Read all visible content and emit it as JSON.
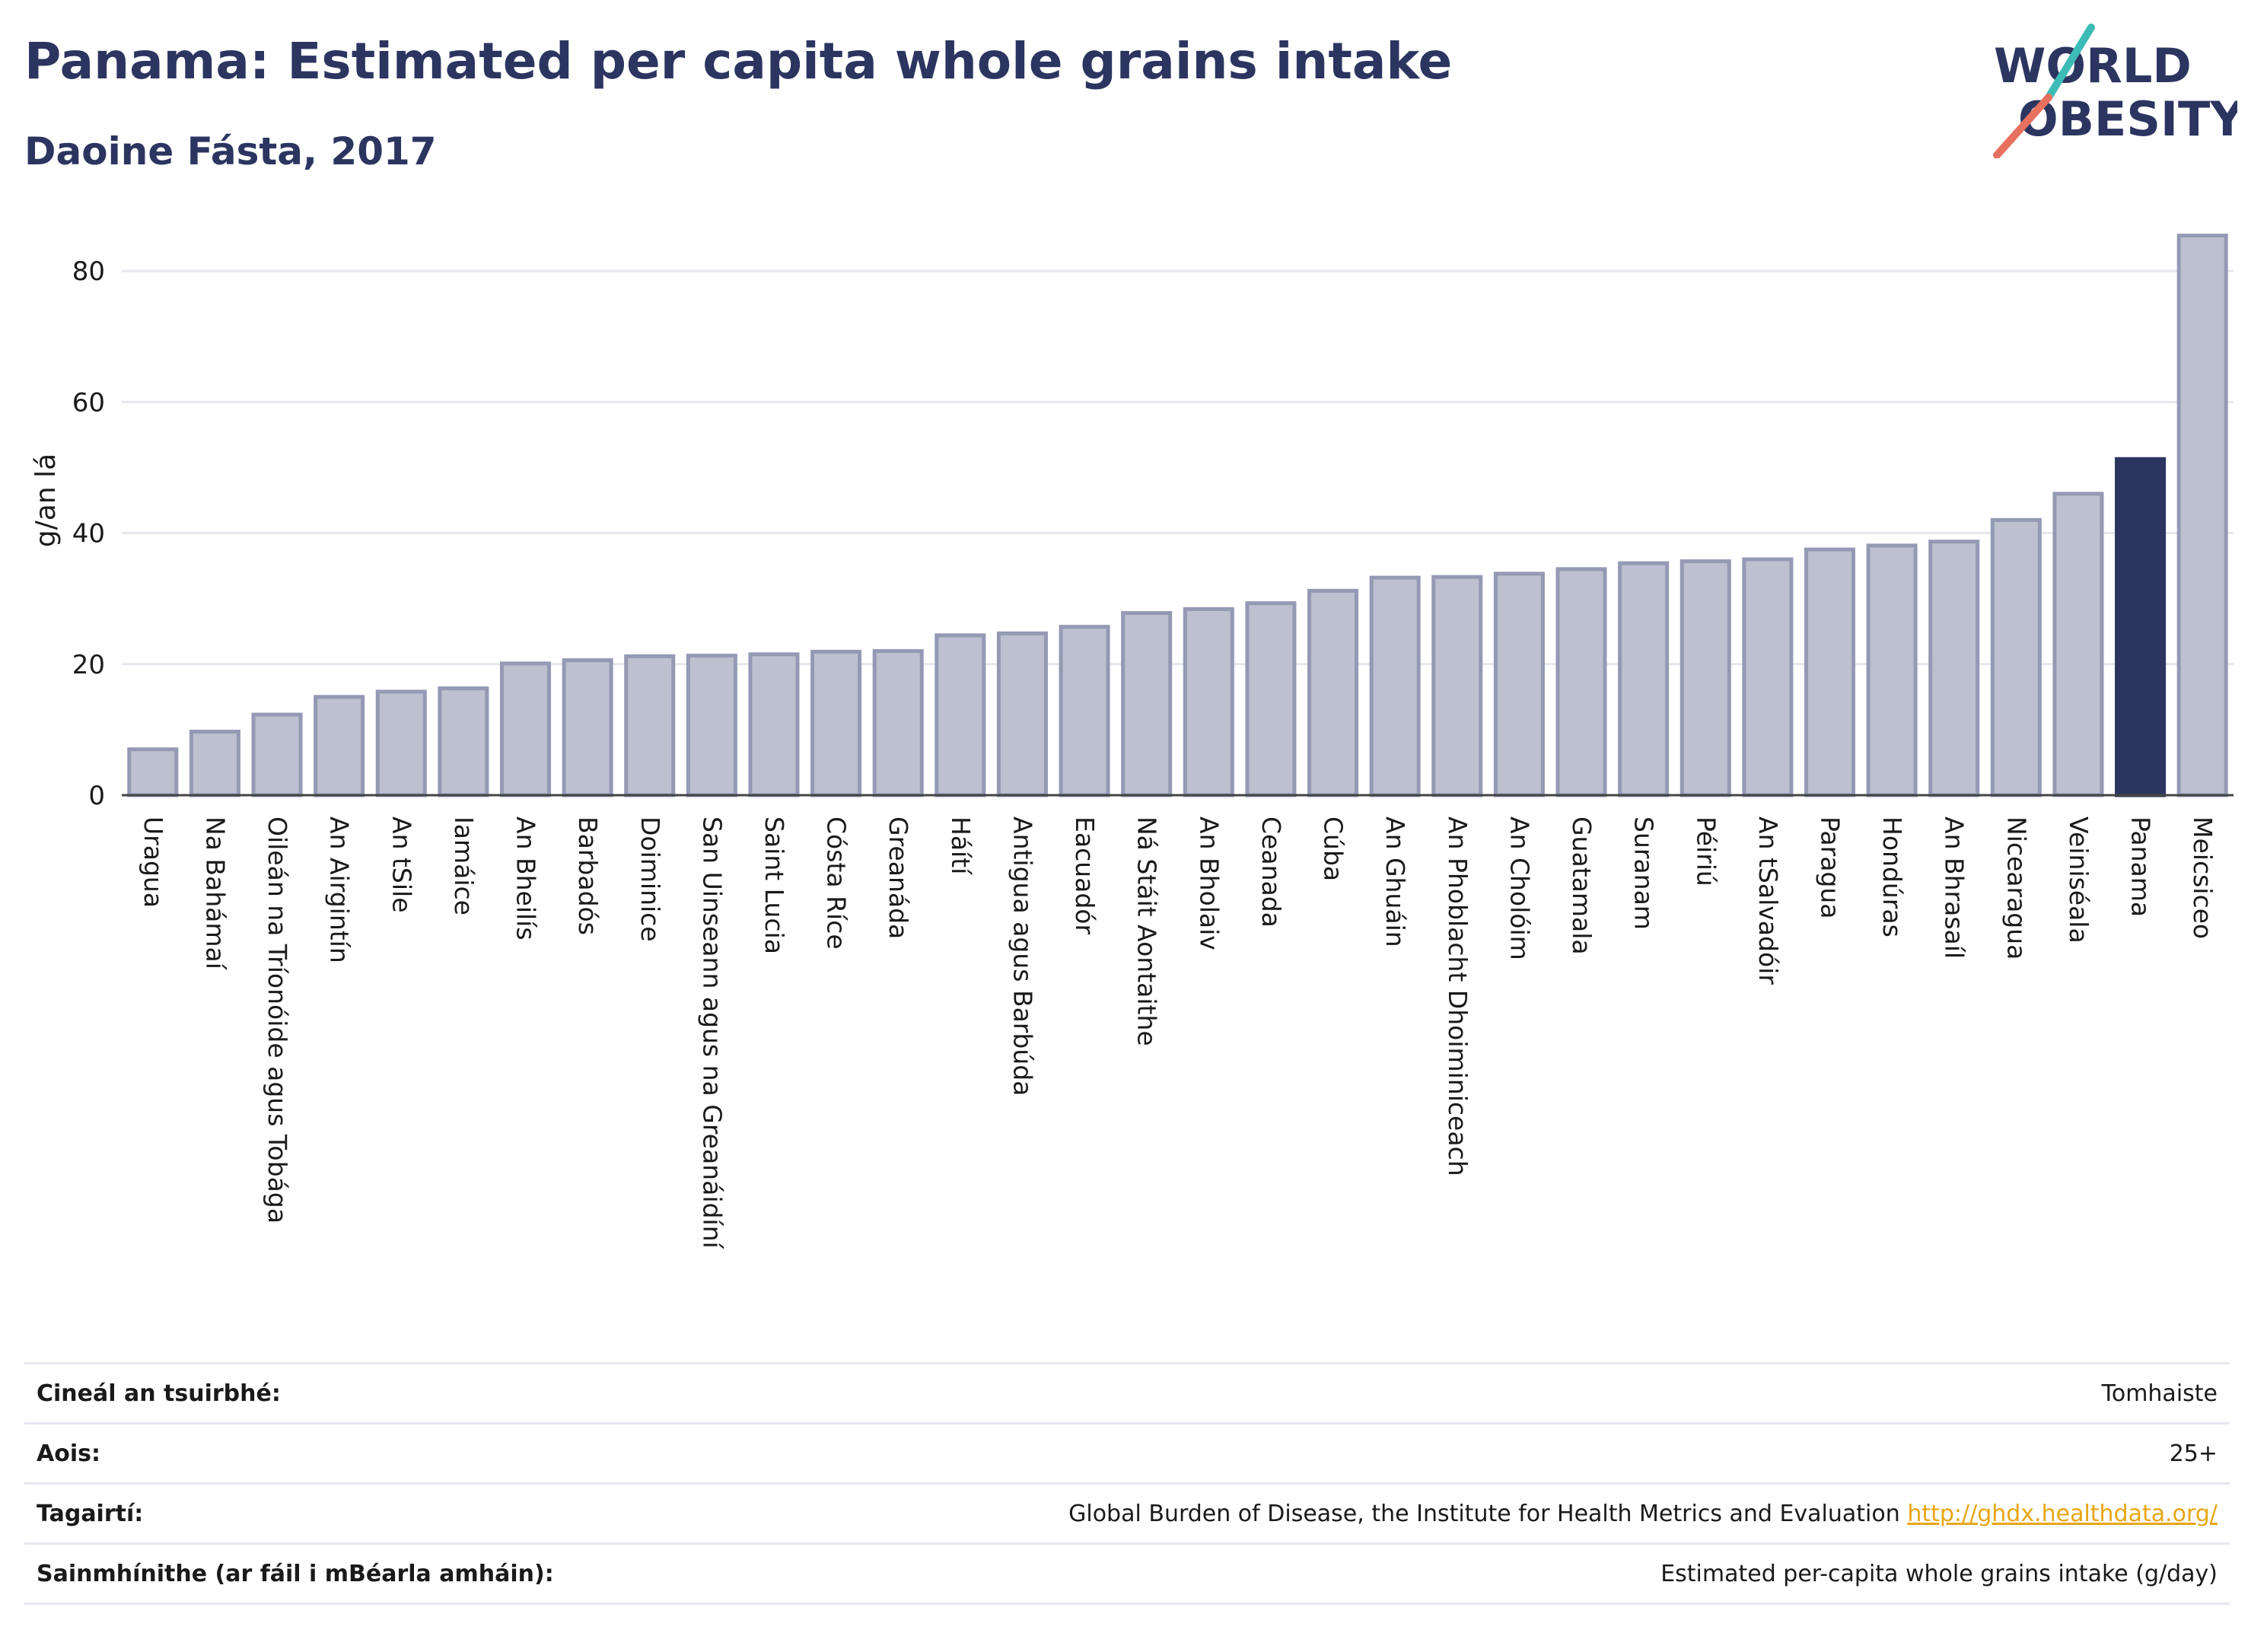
{
  "title": "Panama: Estimated per capita whole grains intake",
  "subtitle": "Daoine Fásta, 2017",
  "logo": {
    "line1": "WORLD",
    "line2": "OBESITY",
    "accent_teal": "#3dbbb6",
    "accent_red": "#e8705f",
    "text_color": "#2c3560"
  },
  "colors": {
    "bar": "#bcc0cf",
    "bar_stroke": "#9499b4",
    "highlight": "#2c3560",
    "grid": "#e6e7ee",
    "axis_text": "#1a1a1a"
  },
  "chart_data": {
    "type": "bar",
    "ylabel": "g/an lá",
    "ylim": [
      0,
      90
    ],
    "yticks": [
      0,
      20,
      40,
      60,
      80
    ],
    "grid": true,
    "highlight": "Panama",
    "categories": [
      "Uragua",
      "Na Bahámaí",
      "Oileán na Tríonóide agus Tobága",
      "An Airgintín",
      "An tSile",
      "Iamáice",
      "An Bheilís",
      "Barbadós",
      "Doiminice",
      "San Uinseann agus na Greanáidíní",
      "Saint Lucia",
      "Cósta Ríce",
      "Greanáda",
      "Háítí",
      "Antigua agus Barbúda",
      "Eacuadór",
      "Ná Stáit Aontaithe",
      "An Bholaiv",
      "Ceanada",
      "Cúba",
      "An Ghuáin",
      "An Phoblacht Dhoiminiceach",
      "An Cholóim",
      "Guatamala",
      "Suranam",
      "Péiriú",
      "An tSalvadóir",
      "Paragua",
      "Hondúras",
      "An Bhrasaíl",
      "Nicearagua",
      "Veiniséala",
      "Panama",
      "Meicsiceo"
    ],
    "values": [
      7.0,
      9.7,
      12.3,
      15.0,
      15.8,
      16.3,
      20.1,
      20.6,
      21.2,
      21.3,
      21.5,
      21.9,
      22.0,
      24.4,
      24.7,
      25.7,
      27.8,
      28.4,
      29.3,
      31.2,
      33.2,
      33.3,
      33.8,
      34.5,
      35.4,
      35.7,
      36.0,
      37.5,
      38.1,
      38.7,
      42.0,
      46.0,
      51.3,
      85.4
    ]
  },
  "footer": [
    {
      "label": "Cineál an tsuirbhé:",
      "value": "Tomhaiste"
    },
    {
      "label": "Aois:",
      "value": "25+"
    },
    {
      "label": "Tagairtí:",
      "value": "Global Burden of Disease, the Institute for Health Metrics and Evaluation",
      "link": "http://ghdx.healthdata.org/"
    },
    {
      "label": "Sainmhínithe (ar fáil i mBéarla amháin):",
      "value": "Estimated per-capita whole grains intake (g/day)"
    }
  ]
}
